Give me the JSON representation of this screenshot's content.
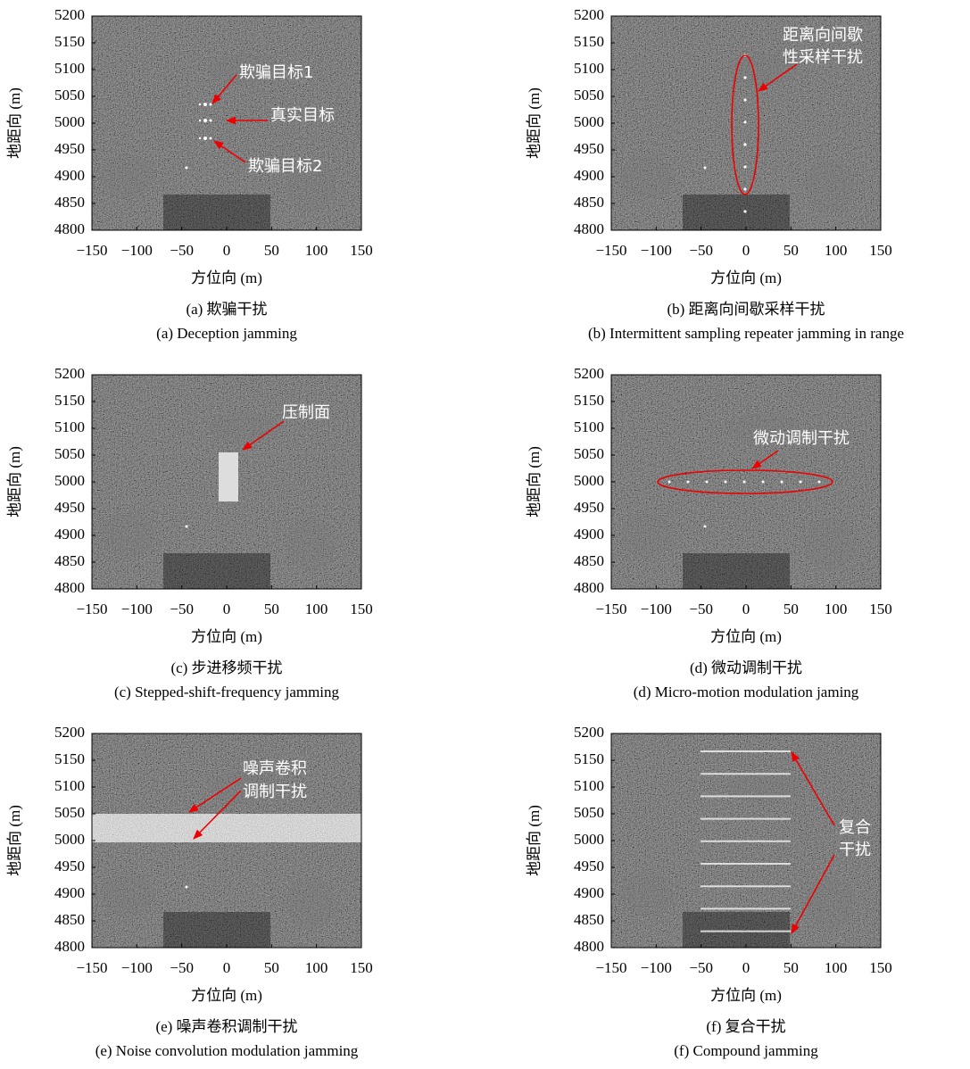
{
  "x_label": "方位向 (m)",
  "y_label": "地距向 (m)",
  "xlim": [
    -150,
    150
  ],
  "ylim": [
    4800,
    5200
  ],
  "xticks": [
    {
      "value": -150,
      "label": "−150"
    },
    {
      "value": -100,
      "label": "−100"
    },
    {
      "value": -50,
      "label": "−50"
    },
    0,
    50,
    100,
    150
  ],
  "yticks": [
    4800,
    4850,
    4900,
    4950,
    5000,
    5050,
    5100,
    5150,
    5200
  ],
  "panels": [
    {
      "caption_zh": "(a) 欺骗干扰",
      "caption_en": "(a) Deception jamming",
      "annotations": [
        "欺骗目标1",
        "真实目标",
        "欺骗目标2"
      ]
    },
    {
      "caption_zh": "(b) 距离向间歇采样干扰",
      "caption_en": "(b) Intermittent sampling repeater jamming in range",
      "annotations": [
        "距离向间歇",
        "性采样干扰"
      ]
    },
    {
      "caption_zh": "(c) 步进移频干扰",
      "caption_en": "(c) Stepped-shift-frequency jamming",
      "annotations": [
        "压制面"
      ]
    },
    {
      "caption_zh": "(d) 微动调制干扰",
      "caption_en": "(d) Micro-motion modulation jaming",
      "annotations": [
        "微动调制干扰"
      ]
    },
    {
      "caption_zh": "(e) 噪声卷积调制干扰",
      "caption_en": "(e) Noise convolution modulation jamming",
      "annotations": [
        "噪声卷积",
        "调制干扰"
      ]
    },
    {
      "caption_zh": "(f) 复合干扰",
      "caption_en": "(f) Compound jamming",
      "annotations": [
        "复合",
        "干扰"
      ]
    }
  ]
}
